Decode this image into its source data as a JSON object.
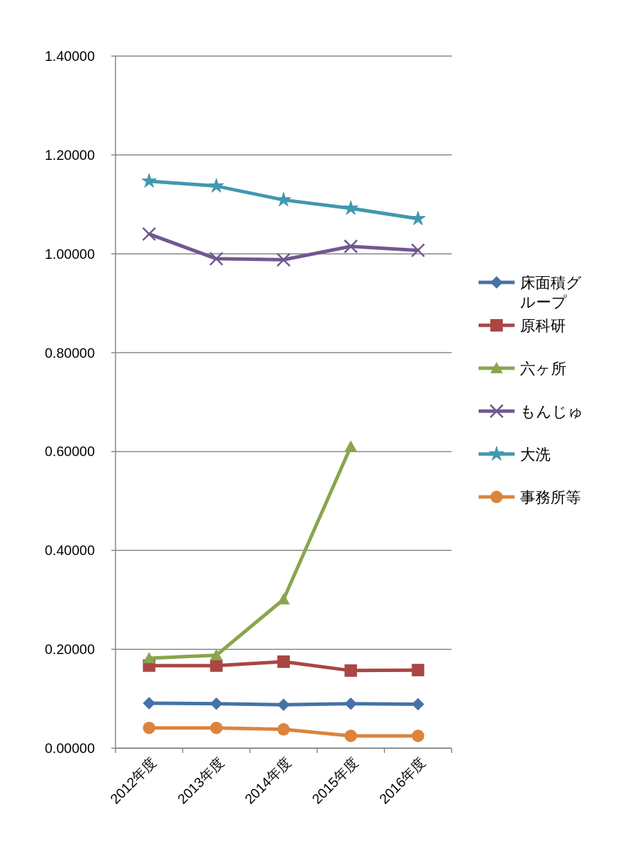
{
  "chart_data": {
    "type": "line",
    "categories": [
      "2012年度",
      "2013年度",
      "2014年度",
      "2015年度",
      "2016年度"
    ],
    "ylim": [
      0,
      1.4
    ],
    "yticks": [
      {
        "value": 0,
        "label": "0.00000"
      },
      {
        "value": 0.2,
        "label": "0.20000"
      },
      {
        "value": 0.4,
        "label": "0.40000"
      },
      {
        "value": 0.6,
        "label": "0.60000"
      },
      {
        "value": 0.8,
        "label": "0.80000"
      },
      {
        "value": 1.0,
        "label": "1.00000"
      },
      {
        "value": 1.2,
        "label": "1.20000"
      },
      {
        "value": 1.4,
        "label": "1.40000"
      }
    ],
    "grid": "y",
    "legend": "right",
    "line_style": "solid",
    "series": [
      {
        "name": "床面積グループ",
        "color": "#4572a7",
        "marker": "diamond",
        "values": [
          0.091,
          0.09,
          0.088,
          0.09,
          0.089
        ]
      },
      {
        "name": "原科研",
        "color": "#aa4643",
        "marker": "square",
        "values": [
          0.167,
          0.167,
          0.175,
          0.157,
          0.158
        ]
      },
      {
        "name": "六ヶ所",
        "color": "#89a54e",
        "marker": "triangle",
        "values": [
          0.182,
          0.188,
          0.301,
          0.61,
          null
        ]
      },
      {
        "name": "もんじゅ",
        "color": "#71588f",
        "marker": "cross",
        "values": [
          1.04,
          0.99,
          0.988,
          1.015,
          1.007
        ]
      },
      {
        "name": "大洗",
        "color": "#4198af",
        "marker": "star",
        "values": [
          1.147,
          1.137,
          1.109,
          1.092,
          1.071
        ]
      },
      {
        "name": "事務所等",
        "color": "#db843d",
        "marker": "circle",
        "values": [
          0.041,
          0.041,
          0.038,
          0.025,
          0.025
        ]
      }
    ]
  }
}
